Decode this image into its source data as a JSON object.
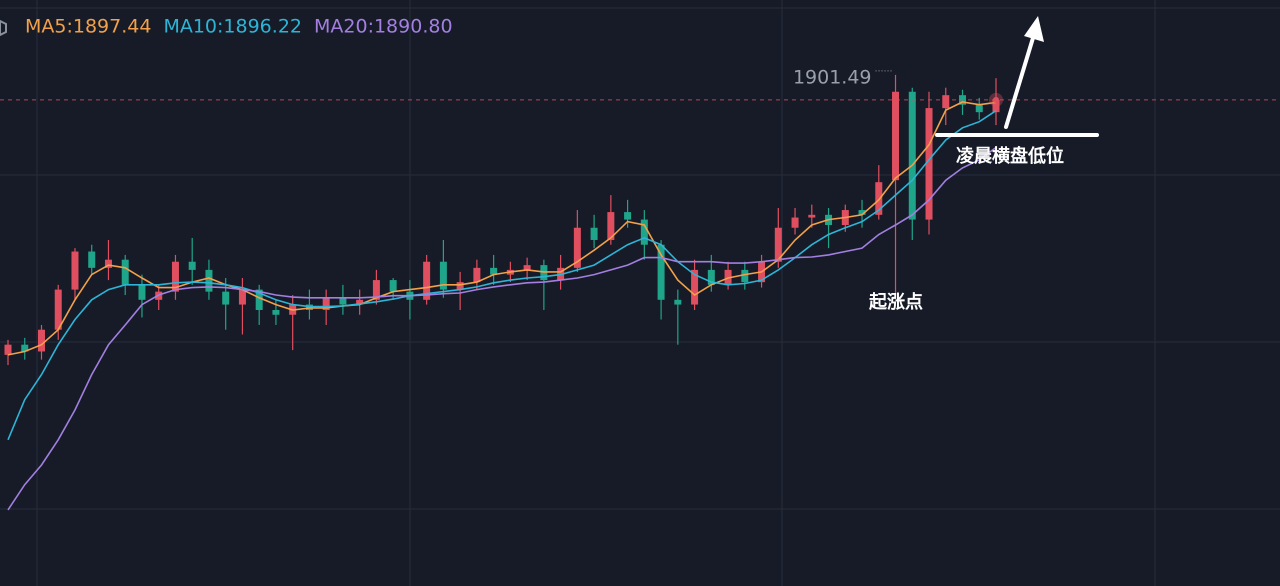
{
  "chart_data": {
    "type": "candlestick",
    "ylim": [
      1826.3,
      1912.5
    ],
    "up_color": "#e04f5f",
    "down_color": "#1fa58a",
    "open": [
      1860.3,
      1861.8,
      1860.8,
      1864.0,
      1869.9,
      1875.5,
      1873.1,
      1874.3,
      1870.6,
      1868.4,
      1869.6,
      1874.0,
      1872.8,
      1869.6,
      1867.7,
      1869.9,
      1866.9,
      1866.2,
      1867.7,
      1866.9,
      1868.7,
      1867.7,
      1868.4,
      1871.3,
      1869.6,
      1868.4,
      1874.0,
      1869.9,
      1871.0,
      1873.1,
      1872.1,
      1872.8,
      1873.5,
      1871.3,
      1873.1,
      1879.0,
      1877.2,
      1881.3,
      1880.2,
      1876.5,
      1868.4,
      1867.7,
      1872.8,
      1870.6,
      1872.8,
      1871.0,
      1874.0,
      1879.0,
      1880.5,
      1880.9,
      1879.4,
      1881.6,
      1880.9,
      1886.0,
      1899.0,
      1880.2,
      1896.6,
      1898.5,
      1897.1,
      1896.0
    ],
    "high": [
      1862.5,
      1862.8,
      1864.7,
      1870.6,
      1876.0,
      1876.5,
      1877.2,
      1875.0,
      1872.1,
      1870.6,
      1875.0,
      1877.5,
      1874.3,
      1871.6,
      1871.6,
      1870.6,
      1868.4,
      1869.1,
      1869.9,
      1869.9,
      1870.6,
      1869.9,
      1872.8,
      1871.6,
      1871.3,
      1875.0,
      1877.2,
      1872.5,
      1874.3,
      1875.0,
      1874.0,
      1874.6,
      1874.3,
      1875.0,
      1881.6,
      1880.9,
      1883.8,
      1883.1,
      1881.6,
      1877.2,
      1869.9,
      1874.3,
      1875.0,
      1874.0,
      1874.0,
      1875.0,
      1881.9,
      1881.9,
      1882.4,
      1881.9,
      1882.4,
      1883.1,
      1888.2,
      1901.49,
      1899.6,
      1899.0,
      1899.6,
      1899.3,
      1898.1,
      1901.0
    ],
    "low": [
      1858.8,
      1859.6,
      1859.6,
      1862.5,
      1868.4,
      1872.1,
      1871.3,
      1869.1,
      1865.8,
      1866.9,
      1868.4,
      1870.6,
      1868.4,
      1864.0,
      1863.3,
      1864.7,
      1864.7,
      1861.0,
      1865.5,
      1864.7,
      1866.2,
      1866.2,
      1867.7,
      1868.4,
      1865.5,
      1867.7,
      1868.7,
      1866.9,
      1869.9,
      1870.6,
      1871.0,
      1871.3,
      1866.9,
      1869.9,
      1872.5,
      1876.0,
      1876.5,
      1879.0,
      1874.3,
      1865.5,
      1861.8,
      1866.9,
      1869.6,
      1869.9,
      1869.9,
      1870.2,
      1873.1,
      1878.0,
      1879.0,
      1876.0,
      1878.4,
      1879.0,
      1880.2,
      1869.1,
      1877.2,
      1878.0,
      1894.1,
      1895.6,
      1894.9,
      1894.1
    ],
    "close": [
      1861.8,
      1860.8,
      1864.0,
      1869.9,
      1875.5,
      1873.1,
      1874.3,
      1870.6,
      1868.4,
      1869.6,
      1874.0,
      1872.8,
      1869.6,
      1867.7,
      1869.9,
      1866.9,
      1866.2,
      1867.7,
      1866.9,
      1868.7,
      1867.7,
      1868.4,
      1871.3,
      1869.6,
      1868.4,
      1874.0,
      1869.9,
      1871.0,
      1873.1,
      1872.1,
      1872.8,
      1873.5,
      1871.3,
      1873.1,
      1879.0,
      1877.2,
      1881.3,
      1880.2,
      1876.5,
      1868.4,
      1867.7,
      1872.8,
      1870.6,
      1872.8,
      1871.0,
      1874.0,
      1879.0,
      1880.5,
      1880.9,
      1879.4,
      1881.6,
      1880.9,
      1885.7,
      1899.0,
      1880.2,
      1896.6,
      1898.5,
      1897.1,
      1896.0,
      1897.8
    ],
    "series": [
      {
        "name": "MA5:1897.44",
        "color": "#f2a049",
        "values": [
          1860.3,
          1860.8,
          1861.8,
          1864.0,
          1868.4,
          1872.1,
          1873.5,
          1873.1,
          1871.6,
          1870.2,
          1870.2,
          1871.0,
          1871.6,
          1870.6,
          1869.9,
          1868.7,
          1867.7,
          1866.9,
          1867.2,
          1867.2,
          1867.5,
          1867.7,
          1868.7,
          1869.6,
          1869.9,
          1870.2,
          1870.6,
          1870.6,
          1871.0,
          1872.1,
          1872.5,
          1872.8,
          1872.5,
          1872.5,
          1874.0,
          1875.7,
          1877.5,
          1879.9,
          1879.4,
          1875.0,
          1871.3,
          1869.1,
          1870.6,
          1871.6,
          1872.1,
          1872.5,
          1874.3,
          1877.2,
          1879.4,
          1880.2,
          1880.5,
          1880.9,
          1883.1,
          1886.3,
          1888.2,
          1891.2,
          1896.3,
          1897.5,
          1897.1,
          1897.44
        ]
      },
      {
        "name": "MA10:1896.22",
        "color": "#2eb4d6",
        "values": [
          1847.8,
          1853.7,
          1857.4,
          1861.8,
          1865.5,
          1868.4,
          1869.9,
          1870.6,
          1870.6,
          1870.6,
          1870.9,
          1871.0,
          1870.9,
          1870.6,
          1870.2,
          1869.4,
          1868.4,
          1867.7,
          1867.4,
          1867.4,
          1867.5,
          1867.8,
          1868.1,
          1868.5,
          1869.0,
          1869.3,
          1869.6,
          1869.9,
          1870.3,
          1870.9,
          1871.3,
          1871.6,
          1871.8,
          1872.1,
          1872.8,
          1873.5,
          1875.0,
          1876.5,
          1877.5,
          1876.5,
          1874.0,
          1872.1,
          1871.0,
          1870.6,
          1870.8,
          1871.3,
          1872.8,
          1874.6,
          1876.5,
          1878.0,
          1879.0,
          1879.9,
          1881.6,
          1883.8,
          1886.0,
          1889.0,
          1891.9,
          1893.7,
          1894.6,
          1896.22
        ]
      },
      {
        "name": "MA20:1890.80",
        "color": "#a27fe0",
        "values": [
          1837.5,
          1841.2,
          1844.1,
          1847.8,
          1852.2,
          1857.4,
          1861.8,
          1864.7,
          1867.7,
          1869.1,
          1869.9,
          1870.2,
          1870.3,
          1870.2,
          1869.9,
          1869.6,
          1869.1,
          1868.8,
          1868.7,
          1868.7,
          1868.7,
          1868.7,
          1868.8,
          1869.0,
          1869.0,
          1869.1,
          1869.3,
          1869.4,
          1869.9,
          1870.3,
          1870.6,
          1870.9,
          1871.0,
          1871.3,
          1871.6,
          1872.1,
          1872.8,
          1873.5,
          1874.6,
          1874.6,
          1874.0,
          1874.0,
          1874.0,
          1873.8,
          1873.8,
          1874.0,
          1874.3,
          1874.6,
          1874.7,
          1875.0,
          1875.5,
          1876.0,
          1878.0,
          1879.4,
          1880.9,
          1883.1,
          1886.0,
          1887.8,
          1889.0,
          1890.8
        ]
      }
    ],
    "annotations": [
      "起涨点",
      "凌晨横盘低位"
    ]
  }
}
